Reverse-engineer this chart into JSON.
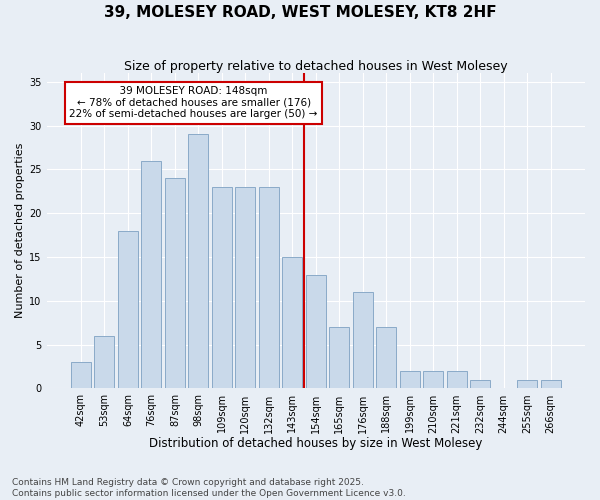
{
  "title": "39, MOLESEY ROAD, WEST MOLESEY, KT8 2HF",
  "subtitle": "Size of property relative to detached houses in West Molesey",
  "xlabel": "Distribution of detached houses by size in West Molesey",
  "ylabel": "Number of detached properties",
  "categories": [
    "42sqm",
    "53sqm",
    "64sqm",
    "76sqm",
    "87sqm",
    "98sqm",
    "109sqm",
    "120sqm",
    "132sqm",
    "143sqm",
    "154sqm",
    "165sqm",
    "176sqm",
    "188sqm",
    "199sqm",
    "210sqm",
    "221sqm",
    "232sqm",
    "244sqm",
    "255sqm",
    "266sqm"
  ],
  "values": [
    3,
    6,
    18,
    26,
    24,
    29,
    23,
    23,
    23,
    15,
    13,
    7,
    11,
    7,
    2,
    2,
    2,
    1,
    0,
    1,
    1
  ],
  "bar_color": "#c9d9ea",
  "bar_edge_color": "#8aaac8",
  "vline_x": 9.5,
  "vline_color": "#cc0000",
  "annotation_text": "  39 MOLESEY ROAD: 148sqm  \n← 78% of detached houses are smaller (176)\n22% of semi-detached houses are larger (50) →",
  "annotation_box_color": "#ffffff",
  "annotation_box_edge_color": "#cc0000",
  "ylim": [
    0,
    36
  ],
  "yticks": [
    0,
    5,
    10,
    15,
    20,
    25,
    30,
    35
  ],
  "background_color": "#e8eef5",
  "grid_color": "#ffffff",
  "footnote": "Contains HM Land Registry data © Crown copyright and database right 2025.\nContains public sector information licensed under the Open Government Licence v3.0.",
  "title_fontsize": 11,
  "subtitle_fontsize": 9,
  "xlabel_fontsize": 8.5,
  "ylabel_fontsize": 8,
  "tick_fontsize": 7,
  "annotation_fontsize": 7.5,
  "footnote_fontsize": 6.5
}
